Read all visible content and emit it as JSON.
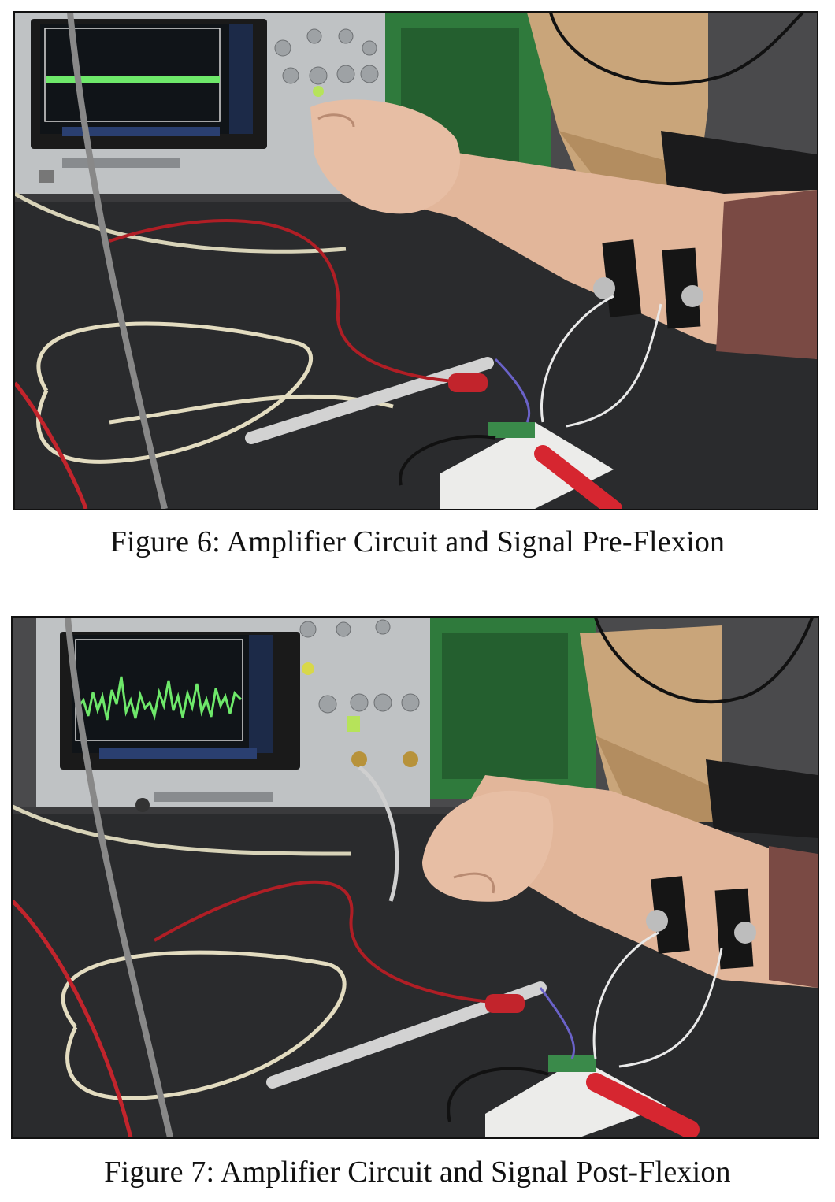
{
  "figures": [
    {
      "caption": "Figure 6: Amplifier Circuit and Signal Pre-Flexion",
      "photo_label": "Photo of forearm with electrodes connected to a breadboard amplifier; oscilloscope shows a flat signal",
      "signal": "flat"
    },
    {
      "caption": "Figure 7: Amplifier Circuit and Signal Post-Flexion",
      "photo_label": "Photo of flexed forearm with electrodes connected to a breadboard amplifier; oscilloscope shows a noisy EMG signal",
      "signal": "emg-burst"
    }
  ],
  "colors": {
    "trace": "#6ee86a",
    "bench": "#2a2b2d",
    "skin": "#e2b69a",
    "sleeve": "#7a4a44",
    "crate": "#2f7a3c",
    "cardboard": "#c9a57a"
  }
}
